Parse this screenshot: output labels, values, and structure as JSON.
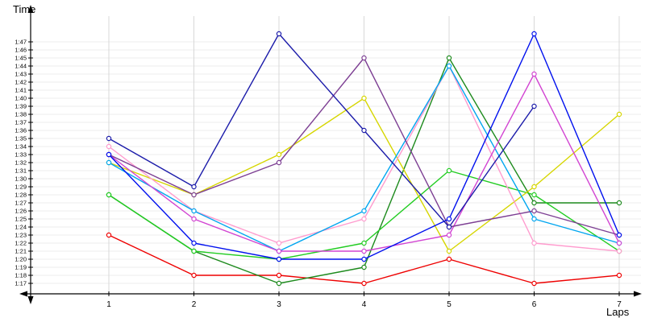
{
  "chart_data": {
    "type": "line",
    "title": "",
    "xlabel": "Laps",
    "ylabel": "Time",
    "x_ticks": [
      "1",
      "2",
      "3",
      "4",
      "5",
      "6",
      "7"
    ],
    "y_ticks_top_to_bottom": [
      "1:47",
      "1:46",
      "1:45",
      "1:44",
      "1:43",
      "1:42",
      "1:41",
      "1:40",
      "1:39",
      "1:38",
      "1:37",
      "1:36",
      "1:35",
      "1:34",
      "1:33",
      "1:32",
      "1:31",
      "1:30",
      "1:29",
      "1:28",
      "1:27",
      "1:26",
      "1:25",
      "1:24",
      "1:23",
      "1:22",
      "1:21",
      "1:20",
      "1:19",
      "1:18",
      "1:17"
    ],
    "ylim_seconds": [
      76,
      109
    ],
    "grid": true,
    "legend": "none",
    "marker": "open-circle",
    "series": [
      {
        "name": "red",
        "color": "#ee0000",
        "values": [
          "1:23",
          "1:18",
          "1:18",
          "1:17",
          "1:20",
          "1:17",
          "1:18"
        ]
      },
      {
        "name": "dark-green",
        "color": "#1d8a1d",
        "values": [
          "1:28",
          "1:21",
          "1:17",
          "1:19",
          "1:45",
          "1:27",
          "1:27"
        ]
      },
      {
        "name": "green",
        "color": "#22cc22",
        "values": [
          "1:28",
          "1:21",
          "1:20",
          "1:22",
          "1:31",
          "1:28",
          "1:21"
        ]
      },
      {
        "name": "yellow",
        "color": "#d6d600",
        "values": [
          "1:32",
          "1:28",
          "1:33",
          "1:40",
          "1:21",
          "1:29",
          "1:38"
        ]
      },
      {
        "name": "pink",
        "color": "#ff9bce",
        "values": [
          "1:34",
          "1:26",
          "1:22",
          "1:25",
          "1:44",
          "1:22",
          "1:21"
        ]
      },
      {
        "name": "cyan",
        "color": "#00a6f0",
        "values": [
          "1:32",
          "1:26",
          "1:21",
          "1:26",
          "1:44",
          "1:25",
          "1:22"
        ]
      },
      {
        "name": "magenta",
        "color": "#d244d2",
        "values": [
          "1:33",
          "1:25",
          "1:21",
          "1:21",
          "1:23",
          "1:43",
          "1:22"
        ]
      },
      {
        "name": "purple",
        "color": "#7d3f93",
        "values": [
          "1:33",
          "1:28",
          "1:32",
          "1:45",
          "1:24",
          "1:26",
          "1:23"
        ]
      },
      {
        "name": "blue",
        "color": "#0010ee",
        "values": [
          "1:33",
          "1:22",
          "1:20",
          "1:20",
          "1:25",
          "1:48",
          "1:23"
        ]
      },
      {
        "name": "navy",
        "color": "#1c1caa",
        "values": [
          "1:35",
          "1:29",
          "1:48",
          "1:36",
          "1:24",
          "1:39",
          null
        ]
      }
    ]
  }
}
